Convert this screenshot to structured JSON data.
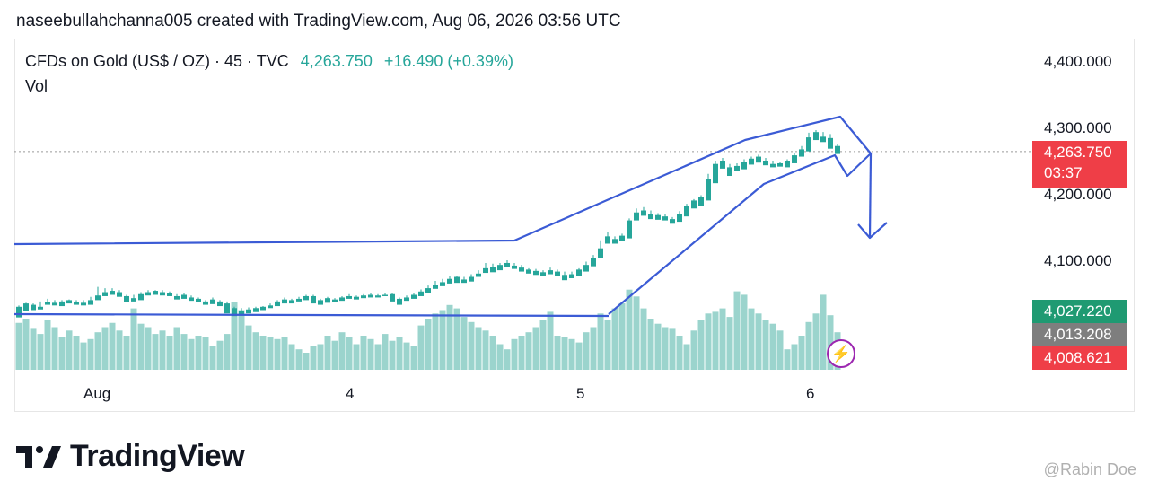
{
  "header": {
    "attribution": "naseebullahchanna005 created with TradingView.com, Aug 06, 2026 03:56 UTC"
  },
  "legend": {
    "symbol": "CFDs on Gold (US$ / OZ) · 45 · TVC",
    "last": "4,263.750",
    "change": "+16.490 (+0.39%)",
    "vol_label": "Vol"
  },
  "price_tags": {
    "current_price": "4,263.750",
    "countdown": "03:37",
    "green": "4,027.220",
    "gray": "4,013.208",
    "red": "4,008.621"
  },
  "colors": {
    "up": "#26a69a",
    "down": "#ef5350",
    "vol_up": "#9bd4cd",
    "vol_down": "#f4a4a2",
    "drawing": "#3b5bd5",
    "flash": "#9c27b0"
  },
  "footer": {
    "brand": "TradingView",
    "watermark": "@Rabin Doe"
  },
  "chart_data": {
    "type": "candlestick",
    "title": "CFDs on Gold (US$ / OZ) · 45 · TVC",
    "y_ticks": [
      "4,400.000",
      "4,300.000",
      "4,200.000",
      "4,100.000"
    ],
    "y_tick_values": [
      4400,
      4300,
      4200,
      4100
    ],
    "x_ticks": [
      "Aug",
      "4",
      "5",
      "6"
    ],
    "ylim": [
      3975,
      4440
    ],
    "last_price": 4263.75,
    "candles": [
      [
        4030,
        4032,
        4022,
        4014
      ],
      [
        4035,
        4036,
        4027,
        4024
      ],
      [
        4033,
        4035,
        4028,
        4025
      ],
      [
        4030,
        4038,
        4028,
        4026
      ],
      [
        4037,
        4042,
        4034,
        4033
      ],
      [
        4036,
        4040,
        4033,
        4032
      ],
      [
        4038,
        4040,
        4034,
        4031
      ],
      [
        4040,
        4041,
        4036,
        4035
      ],
      [
        4037,
        4040,
        4035,
        4033
      ],
      [
        4036,
        4040,
        4034,
        4032
      ],
      [
        4040,
        4045,
        4036,
        4033
      ],
      [
        4047,
        4060,
        4043,
        4040
      ],
      [
        4052,
        4058,
        4050,
        4046
      ],
      [
        4054,
        4058,
        4052,
        4048
      ],
      [
        4052,
        4055,
        4047,
        4045
      ],
      [
        4046,
        4048,
        4040,
        4037
      ],
      [
        4043,
        4048,
        4040,
        4038
      ],
      [
        4049,
        4052,
        4043,
        4040
      ],
      [
        4052,
        4055,
        4050,
        4047
      ],
      [
        4054,
        4055,
        4051,
        4048
      ],
      [
        4052,
        4055,
        4049,
        4047
      ],
      [
        4050,
        4053,
        4047,
        4046
      ],
      [
        4046,
        4049,
        4044,
        4041
      ],
      [
        4048,
        4050,
        4043,
        4042
      ],
      [
        4044,
        4047,
        4041,
        4039
      ],
      [
        4042,
        4044,
        4040,
        4037
      ],
      [
        4038,
        4040,
        4036,
        4033
      ],
      [
        4041,
        4044,
        4037,
        4034
      ],
      [
        4038,
        4040,
        4034,
        4031
      ],
      [
        4035,
        4038,
        4024,
        4020
      ],
      [
        4028,
        4030,
        4020,
        4016
      ],
      [
        4024,
        4028,
        4022,
        4018
      ],
      [
        4026,
        4029,
        4024,
        4020
      ],
      [
        4028,
        4030,
        4025,
        4022
      ],
      [
        4030,
        4031,
        4027,
        4025
      ],
      [
        4032,
        4035,
        4030,
        4028
      ],
      [
        4038,
        4040,
        4033,
        4031
      ],
      [
        4041,
        4044,
        4036,
        4035
      ],
      [
        4040,
        4042,
        4038,
        4035
      ],
      [
        4042,
        4045,
        4040,
        4038
      ],
      [
        4046,
        4048,
        4041,
        4040
      ],
      [
        4046,
        4048,
        4037,
        4035
      ],
      [
        4040,
        4042,
        4036,
        4033
      ],
      [
        4043,
        4045,
        4038,
        4036
      ],
      [
        4041,
        4043,
        4039,
        4037
      ],
      [
        4044,
        4046,
        4041,
        4039
      ],
      [
        4046,
        4049,
        4043,
        4042
      ],
      [
        4045,
        4047,
        4043,
        4041
      ],
      [
        4047,
        4049,
        4045,
        4043
      ],
      [
        4048,
        4050,
        4046,
        4044
      ],
      [
        4047,
        4049,
        4046,
        4044
      ],
      [
        4048,
        4050,
        4047,
        4046
      ],
      [
        4049,
        4050,
        4040,
        4038
      ],
      [
        4042,
        4044,
        4036,
        4033
      ],
      [
        4044,
        4047,
        4040,
        4039
      ],
      [
        4048,
        4050,
        4043,
        4042
      ],
      [
        4053,
        4056,
        4048,
        4046
      ],
      [
        4058,
        4062,
        4053,
        4051
      ],
      [
        4063,
        4069,
        4058,
        4057
      ],
      [
        4067,
        4072,
        4062,
        4061
      ],
      [
        4072,
        4076,
        4066,
        4065
      ],
      [
        4075,
        4077,
        4068,
        4066
      ],
      [
        4071,
        4075,
        4068,
        4066
      ],
      [
        4075,
        4079,
        4070,
        4068
      ],
      [
        4080,
        4085,
        4077,
        4075
      ],
      [
        4088,
        4096,
        4083,
        4081
      ],
      [
        4090,
        4095,
        4086,
        4082
      ],
      [
        4093,
        4096,
        4087,
        4085
      ],
      [
        4096,
        4100,
        4092,
        4090
      ],
      [
        4092,
        4096,
        4089,
        4087
      ],
      [
        4089,
        4093,
        4086,
        4083
      ],
      [
        4086,
        4088,
        4082,
        4080
      ],
      [
        4084,
        4087,
        4080,
        4078
      ],
      [
        4082,
        4085,
        4079,
        4077
      ],
      [
        4085,
        4089,
        4081,
        4079
      ],
      [
        4083,
        4086,
        4080,
        4077
      ],
      [
        4078,
        4083,
        4072,
        4070
      ],
      [
        4079,
        4083,
        4075,
        4073
      ],
      [
        4086,
        4088,
        4078,
        4076
      ],
      [
        4093,
        4098,
        4085,
        4083
      ],
      [
        4103,
        4108,
        4093,
        4091
      ],
      [
        4118,
        4130,
        4105,
        4103
      ],
      [
        4136,
        4142,
        4130,
        4125
      ],
      [
        4132,
        4136,
        4128,
        4125
      ],
      [
        4137,
        4140,
        4131,
        4129
      ],
      [
        4160,
        4163,
        4135,
        4133
      ],
      [
        4172,
        4178,
        4165,
        4160
      ],
      [
        4175,
        4180,
        4169,
        4167
      ],
      [
        4170,
        4175,
        4165,
        4162
      ],
      [
        4168,
        4171,
        4164,
        4161
      ],
      [
        4166,
        4169,
        4162,
        4160
      ],
      [
        4162,
        4165,
        4158,
        4155
      ],
      [
        4170,
        4174,
        4160,
        4158
      ],
      [
        4182,
        4185,
        4168,
        4166
      ],
      [
        4190,
        4192,
        4180,
        4178
      ],
      [
        4195,
        4198,
        4185,
        4182
      ],
      [
        4222,
        4230,
        4192,
        4190
      ],
      [
        4245,
        4250,
        4218,
        4216
      ],
      [
        4250,
        4254,
        4240,
        4238
      ],
      [
        4240,
        4245,
        4230,
        4227
      ],
      [
        4242,
        4246,
        4237,
        4234
      ],
      [
        4248,
        4252,
        4240,
        4237
      ],
      [
        4253,
        4256,
        4246,
        4244
      ],
      [
        4256,
        4259,
        4250,
        4247
      ],
      [
        4250,
        4254,
        4245,
        4243
      ],
      [
        4245,
        4250,
        4242,
        4240
      ],
      [
        4246,
        4248,
        4243,
        4241
      ],
      [
        4250,
        4252,
        4243,
        4240
      ],
      [
        4258,
        4262,
        4248,
        4246
      ],
      [
        4267,
        4272,
        4257,
        4256
      ],
      [
        4285,
        4292,
        4265,
        4264
      ],
      [
        4293,
        4296,
        4283,
        4281
      ],
      [
        4286,
        4293,
        4282,
        4278
      ],
      [
        4284,
        4290,
        4270,
        4268
      ],
      [
        4272,
        4275,
        4262,
        4260
      ]
    ],
    "volume": [
      55,
      60,
      48,
      42,
      58,
      50,
      38,
      46,
      40,
      32,
      36,
      44,
      50,
      55,
      46,
      40,
      72,
      54,
      50,
      42,
      46,
      40,
      50,
      42,
      36,
      40,
      38,
      28,
      34,
      42,
      80,
      70,
      52,
      44,
      40,
      38,
      36,
      38,
      30,
      24,
      20,
      28,
      30,
      40,
      34,
      44,
      38,
      30,
      40,
      36,
      30,
      42,
      34,
      38,
      32,
      28,
      52,
      60,
      66,
      70,
      76,
      72,
      62,
      56,
      50,
      46,
      40,
      30,
      24,
      36,
      40,
      44,
      50,
      58,
      68,
      40,
      38,
      36,
      32,
      44,
      50,
      66,
      58,
      72,
      78,
      94,
      86,
      72,
      60,
      54,
      50,
      48,
      40,
      30,
      46,
      58,
      66,
      68,
      72,
      62,
      92,
      88,
      72,
      66,
      58,
      54,
      46,
      24,
      30,
      40,
      56,
      66,
      88,
      64,
      44
    ],
    "series": [
      {
        "name": "Vol",
        "type": "volume"
      }
    ]
  }
}
